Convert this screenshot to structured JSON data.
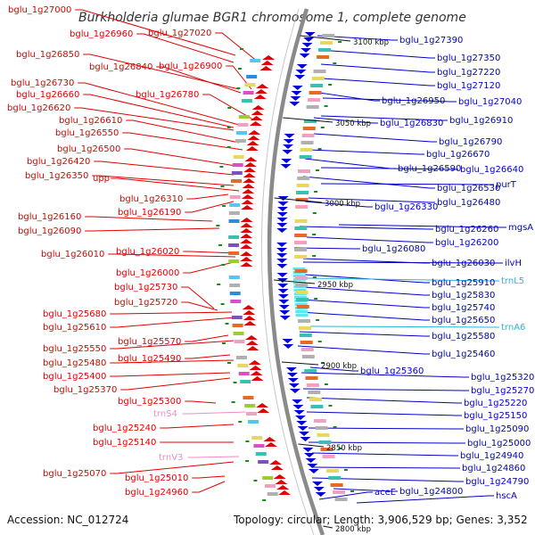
{
  "title": "Burkholderia glumae BGR1 chromosome 1, complete genome",
  "footer": {
    "accession": "Accession: NC_012724",
    "topology": "Topology: circular; Length: 3,906,529 bp; Genes: 3,352"
  },
  "ticks": [
    "3100 kbp",
    "3050 kbp",
    "3000 kbp",
    "2950 kbp",
    "2900 kbp",
    "2850 kbp",
    "2800 kbp"
  ],
  "colors": {
    "left_labels": "#e00000",
    "right_labels": "#0000c8",
    "trna_left": "#f08cc8",
    "trna_right": "#22b8d8",
    "backbone": "#888888",
    "block_left": "#e00000",
    "block_right": "#0000d0",
    "cds_marker": "#1a8a1a"
  },
  "left_labels": [
    "bglu_1g27000",
    "bglu_1g26960",
    "bglu_1g27020",
    "bglu_1g26850",
    "bglu_1g26840",
    "bglu_1g26900",
    "bglu_1g26730",
    "bglu_1g26780",
    "bglu_1g26660",
    "bglu_1g26620",
    "bglu_1g26610",
    "bglu_1g26550",
    "bglu_1g26500",
    "bglu_1g26420",
    "bglu_1g26350",
    "upp",
    "bglu_1g26310",
    "bglu_1g26190",
    "bglu_1g26160",
    "bglu_1g26090",
    "bglu_1g26020",
    "bglu_1g26010",
    "bglu_1g26000",
    "bglu_1g25730",
    "bglu_1g25720",
    "bglu_1g25680",
    "bglu_1g25610",
    "bglu_1g25570",
    "bglu_1g25550",
    "bglu_1g25490",
    "bglu_1g25480",
    "bglu_1g25400",
    "bglu_1g25370",
    "bglu_1g25300",
    "trnS4",
    "bglu_1g25240",
    "bglu_1g25140",
    "trnV3",
    "bglu_1g25070",
    "bglu_1g25010",
    "bglu_1g24960"
  ],
  "right_labels": [
    "bglu_1g27390",
    "bglu_1g27350",
    "bglu_1g27220",
    "bglu_1g27120",
    "bglu_1g26950",
    "bglu_1g27040",
    "bglu_1g26830",
    "bglu_1g26910",
    "bglu_1g26790",
    "bglu_1g26670",
    "bglu_1g26590",
    "bglu_1g26640",
    "bglu_1g26530",
    "purT",
    "bglu_1g26330",
    "bglu_1g26480",
    "bglu_1g26260",
    "mgsA",
    "bglu_1g26200",
    "bglu_1g26080",
    "bglu_1g26030",
    "ilvH",
    "bglu_1g25910",
    "trnL5",
    "bglu_1g25830",
    "bglu_1g25740",
    "bglu_1g25650",
    "trnA6",
    "bglu_1g25580",
    "bglu_1g25460",
    "bglu_1g25360",
    "bglu_1g25320",
    "bglu_1g25270",
    "bglu_1g25220",
    "bglu_1g25150",
    "bglu_1g25090",
    "bglu_1g25000",
    "bglu_1g24940",
    "bglu_1g24860",
    "bglu_1g24790",
    "aceE",
    "bglu_1g24800",
    "hscA"
  ]
}
